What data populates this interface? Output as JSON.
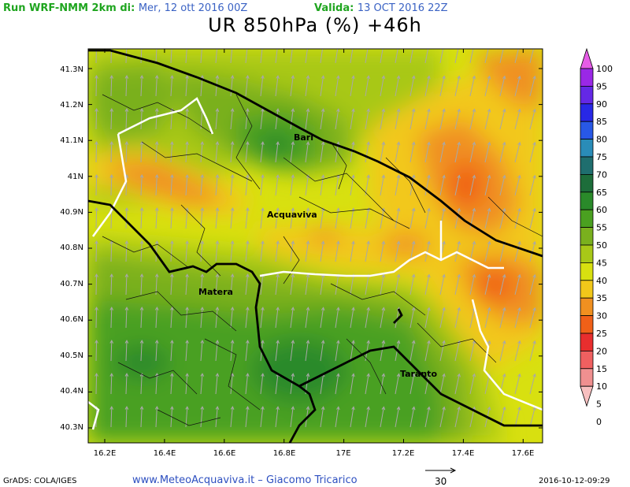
{
  "header": {
    "run_label": "Run WRF-NMM 2km di:",
    "run_date": "Mer, 12 ott 2016 00Z",
    "valid_label": "Valida:",
    "valid_date": "13 OCT 2016 22Z"
  },
  "title": "UR 850hPa (%) +46h",
  "map": {
    "lat_labels": [
      "41.3N",
      "41.2N",
      "41.1N",
      "41N",
      "40.9N",
      "40.8N",
      "40.7N",
      "40.6N",
      "40.5N",
      "40.4N",
      "40.3N"
    ],
    "lon_labels": [
      "16.2E",
      "16.4E",
      "16.6E",
      "16.8E",
      "17E",
      "17.2E",
      "17.4E",
      "17.6E"
    ],
    "cities": [
      {
        "name": "Bari"
      },
      {
        "name": "Acquaviva"
      },
      {
        "name": "Matera"
      },
      {
        "name": "Taranto"
      }
    ]
  },
  "colorbar": {
    "labels": [
      "100",
      "95",
      "90",
      "85",
      "80",
      "75",
      "70",
      "65",
      "60",
      "55",
      "50",
      "45",
      "40",
      "35",
      "30",
      "25",
      "20",
      "15",
      "10",
      "5",
      "0"
    ],
    "colors": [
      "#e65ce6",
      "#9a28e6",
      "#6428e6",
      "#2828e6",
      "#2858e6",
      "#2a8cb8",
      "#1f6e6e",
      "#1d6d3a",
      "#2a8a2a",
      "#4aa020",
      "#7ab01e",
      "#a8c818",
      "#d8e010",
      "#f2c81a",
      "#f09020",
      "#f06018",
      "#e82e2e",
      "#f06060",
      "#f09090",
      "#f8c0c0"
    ]
  },
  "footer": {
    "grads": "GrADS: COLA/IGES",
    "website": "www.MeteoAcquaviva.it – Giacomo Tricarico",
    "vector_ref": "30",
    "timestamp": "2016-10-12-09:29"
  }
}
